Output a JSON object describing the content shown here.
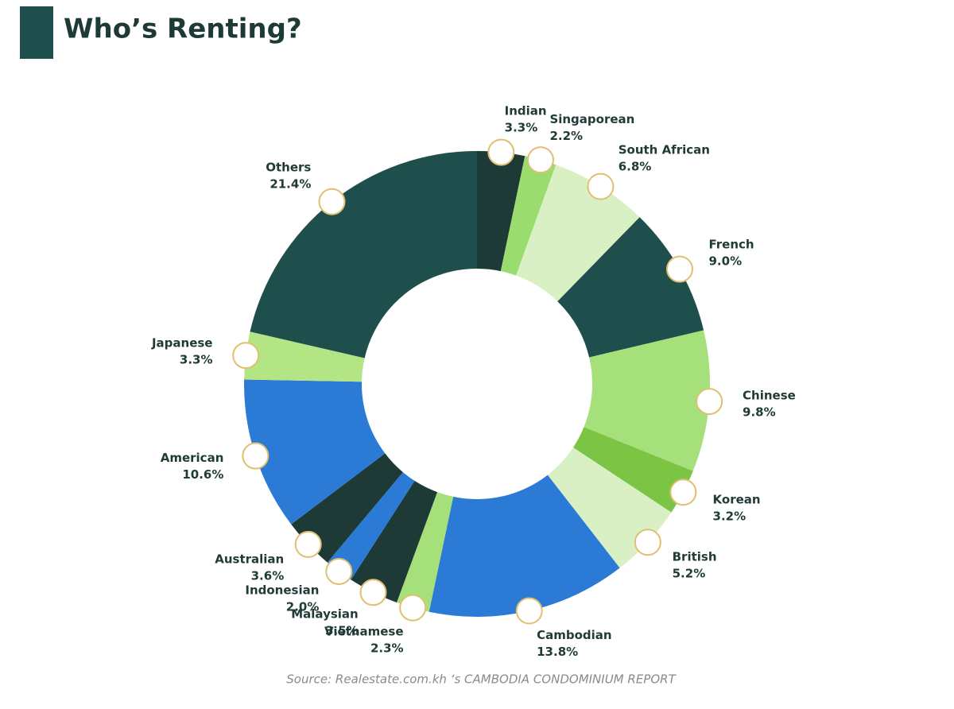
{
  "chart_data": {
    "type": "donut",
    "title": "Who’s Renting?",
    "source": "Source: Realestate.com.kh ‘s CAMBODIA CONDOMINIUM REPORT",
    "categories": [
      "Indian",
      "Singaporean",
      "South African",
      "French",
      "Chinese",
      "Korean",
      "British",
      "Cambodian",
      "Vietnamese",
      "Malaysian",
      "Indonesian",
      "Australian",
      "American",
      "Japanese",
      "Others"
    ],
    "values": [
      3.3,
      2.2,
      6.8,
      9.0,
      9.8,
      3.2,
      5.2,
      13.8,
      2.3,
      3.5,
      2.0,
      3.6,
      10.6,
      3.3,
      21.4
    ],
    "value_labels": [
      "3.3%",
      "2.2%",
      "6.8%",
      "9.0%",
      "9.8%",
      "3.2%",
      "5.2%",
      "13.8%",
      "2.3%",
      "3.5%",
      "2.0%",
      "3.6%",
      "10.6%",
      "3.3%",
      "21.4%"
    ],
    "colors": [
      "#1e3a36",
      "#9bdc6e",
      "#d8f0c4",
      "#1e4f4c",
      "#a6e07a",
      "#7cc443",
      "#d8f0c4",
      "#2b7bd6",
      "#a6e07a",
      "#1e3a36",
      "#2b7bd6",
      "#1e3a36",
      "#2b7bd6",
      "#b4e585",
      "#1e4f4c"
    ]
  }
}
